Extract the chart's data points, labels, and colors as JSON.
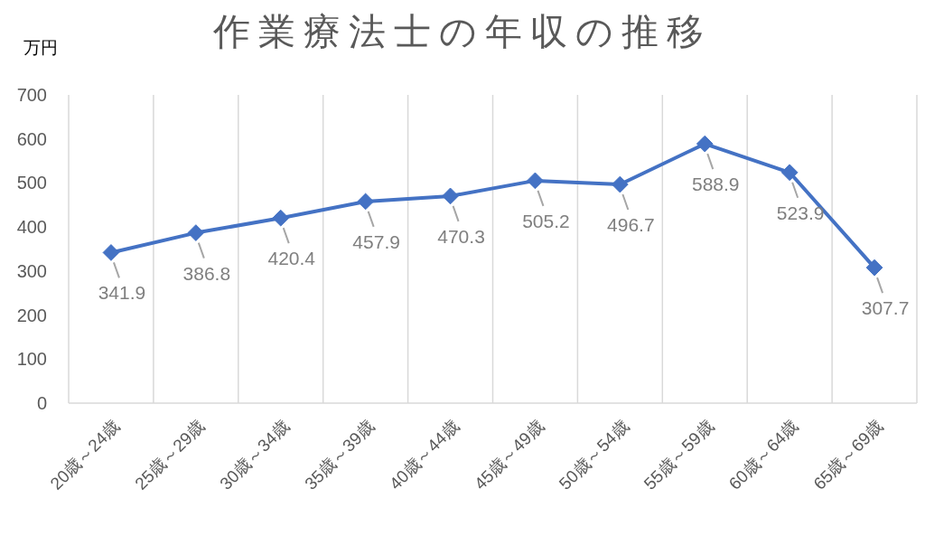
{
  "chart_data": {
    "type": "line",
    "title": "作業療法士の年収の推移",
    "ylabel": "万円",
    "categories": [
      "20歳～24歳",
      "25歳～29歳",
      "30歳～34歳",
      "35歳～39歳",
      "40歳～44歳",
      "45歳～49歳",
      "50歳～54歳",
      "55歳～59歳",
      "60歳～64歳",
      "65歳～69歳"
    ],
    "values": [
      341.9,
      386.8,
      420.4,
      457.9,
      470.3,
      505.2,
      496.7,
      588.9,
      523.9,
      307.7
    ],
    "color": "#4472c4",
    "ylim": [
      0,
      700
    ],
    "yticks": [
      0,
      100,
      200,
      300,
      400,
      500,
      600,
      700
    ],
    "grid": "x",
    "marker": "diamond",
    "data_labels": true
  }
}
